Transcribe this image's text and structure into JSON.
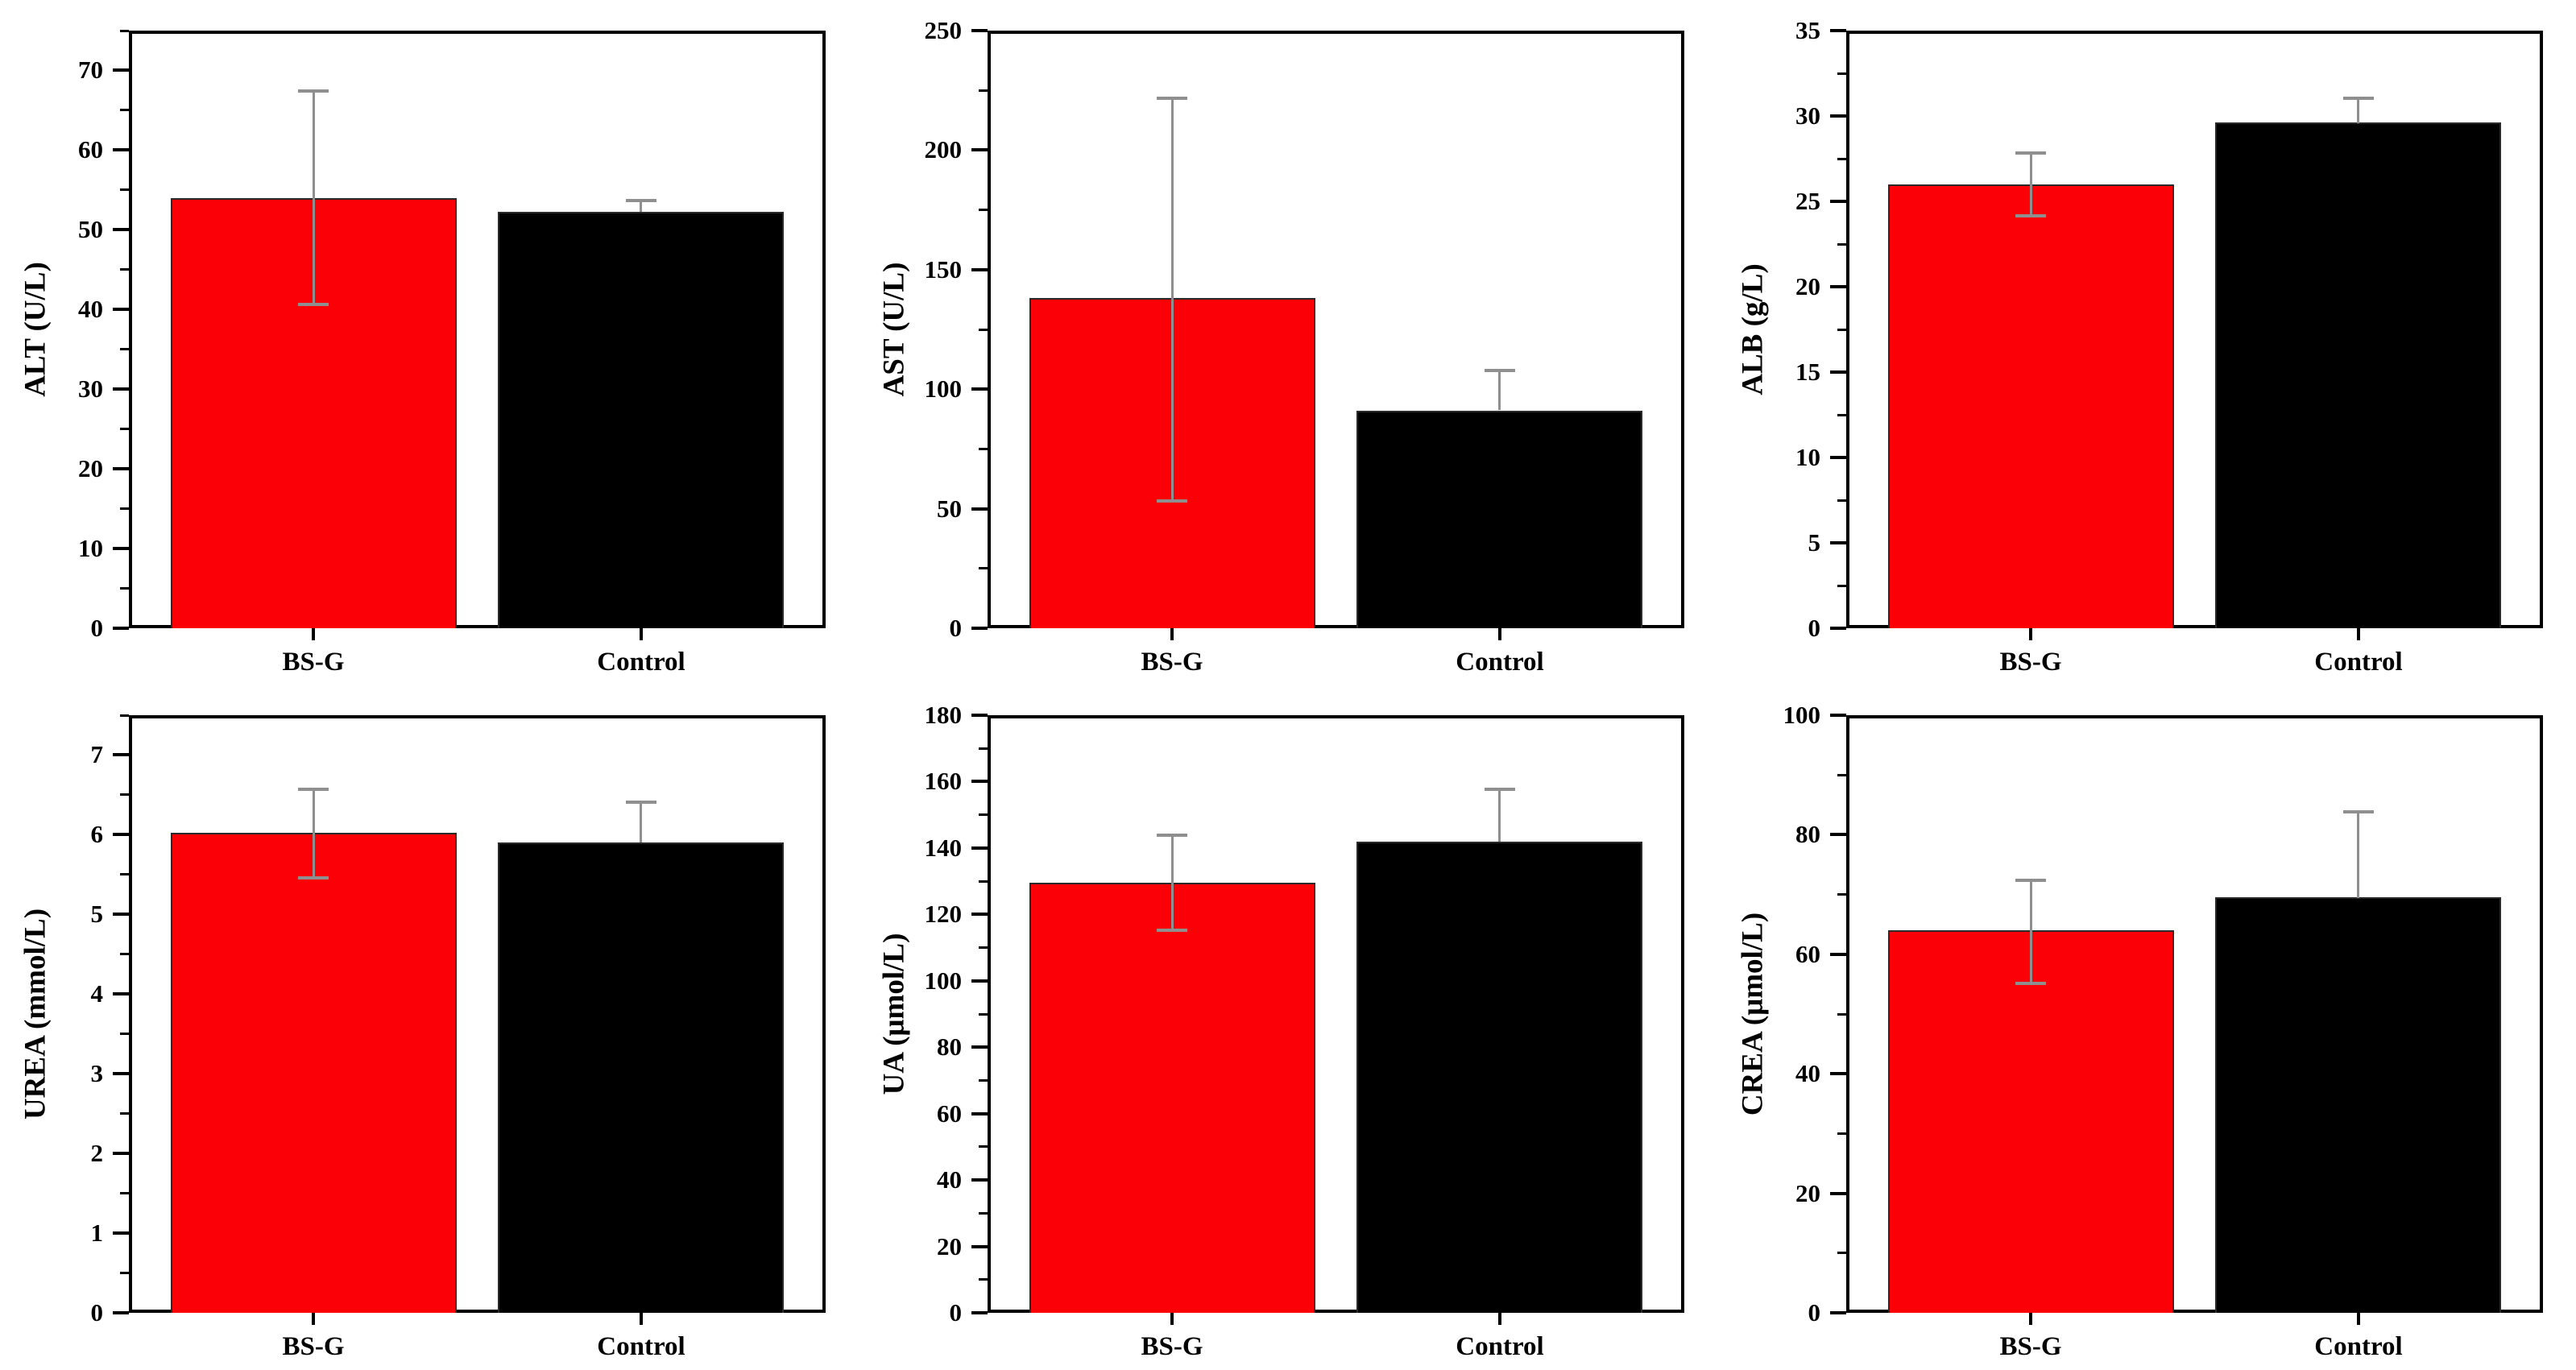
{
  "figure": {
    "background": "#ffffff",
    "groups": [
      "BS-G",
      "Control"
    ]
  },
  "palette": {
    "bsg_bar": "#fb0006",
    "control_bar": "#000000",
    "bar_edge": "#2a2a2a",
    "error_bar": "#8f8f8f",
    "axis": "#000000",
    "text": "#000000"
  },
  "chart_data": [
    {
      "type": "bar",
      "panel": "ALT",
      "title": "",
      "xlabel": "",
      "ylabel": "ALT (U/L)",
      "categories": [
        "BS-G",
        "Control"
      ],
      "values": [
        54.0,
        52.3
      ],
      "err_up": [
        13.5,
        1.5
      ],
      "err_down": [
        13.5,
        null
      ],
      "ylim": [
        0,
        75
      ],
      "ytick_step": 10,
      "yminor_step": 5,
      "ytick_labels": [
        "0",
        "10",
        "20",
        "30",
        "40",
        "50",
        "60",
        "70"
      ],
      "grid": false,
      "legend": "none"
    },
    {
      "type": "bar",
      "panel": "AST",
      "title": "",
      "xlabel": "",
      "ylabel": "AST (U/L)",
      "categories": [
        "BS-G",
        "Control"
      ],
      "values": [
        138.0,
        91.0
      ],
      "err_up": [
        84.0,
        17.0
      ],
      "err_down": [
        85.0,
        null
      ],
      "ylim": [
        0,
        250
      ],
      "ytick_step": 50,
      "yminor_step": 25,
      "ytick_labels": [
        "0",
        "50",
        "100",
        "150",
        "200",
        "250"
      ],
      "grid": false,
      "legend": "none"
    },
    {
      "type": "bar",
      "panel": "ALB",
      "title": "",
      "xlabel": "",
      "ylabel": "ALB (g/L)",
      "categories": [
        "BS-G",
        "Control"
      ],
      "values": [
        26.0,
        29.6
      ],
      "err_up": [
        1.9,
        1.5
      ],
      "err_down": [
        1.9,
        null
      ],
      "ylim": [
        0,
        35
      ],
      "ytick_step": 5,
      "yminor_step": 2.5,
      "ytick_labels": [
        "0",
        "5",
        "10",
        "15",
        "20",
        "25",
        "30",
        "35"
      ],
      "grid": false,
      "legend": "none"
    },
    {
      "type": "bar",
      "panel": "UREA",
      "title": "",
      "xlabel": "",
      "ylabel": "UREA (mmol/L)",
      "categories": [
        "BS-G",
        "Control"
      ],
      "values": [
        6.02,
        5.9
      ],
      "err_up": [
        0.56,
        0.52
      ],
      "err_down": [
        0.57,
        null
      ],
      "ylim": [
        0,
        7.5
      ],
      "ytick_step": 1,
      "yminor_step": 0.5,
      "ytick_labels": [
        "0",
        "1",
        "2",
        "3",
        "4",
        "5",
        "6",
        "7"
      ],
      "grid": false,
      "legend": "none"
    },
    {
      "type": "bar",
      "panel": "UA",
      "title": "",
      "xlabel": "",
      "ylabel": "UA (μmol/L)",
      "categories": [
        "BS-G",
        "Control"
      ],
      "values": [
        129.5,
        142.0
      ],
      "err_up": [
        14.5,
        16.0
      ],
      "err_down": [
        14.5,
        null
      ],
      "ylim": [
        0,
        180
      ],
      "ytick_step": 20,
      "yminor_step": 10,
      "ytick_labels": [
        "0",
        "20",
        "40",
        "60",
        "80",
        "100",
        "120",
        "140",
        "160",
        "180"
      ],
      "grid": false,
      "legend": "none"
    },
    {
      "type": "bar",
      "panel": "CREA",
      "title": "",
      "xlabel": "",
      "ylabel": "CREA (μmol/L)",
      "categories": [
        "BS-G",
        "Control"
      ],
      "values": [
        64.0,
        69.5
      ],
      "err_up": [
        8.5,
        14.5
      ],
      "err_down": [
        9.0,
        null
      ],
      "ylim": [
        0,
        100
      ],
      "ytick_step": 20,
      "yminor_step": 10,
      "ytick_labels": [
        "0",
        "20",
        "40",
        "60",
        "80",
        "100"
      ],
      "grid": false,
      "legend": "none"
    }
  ]
}
